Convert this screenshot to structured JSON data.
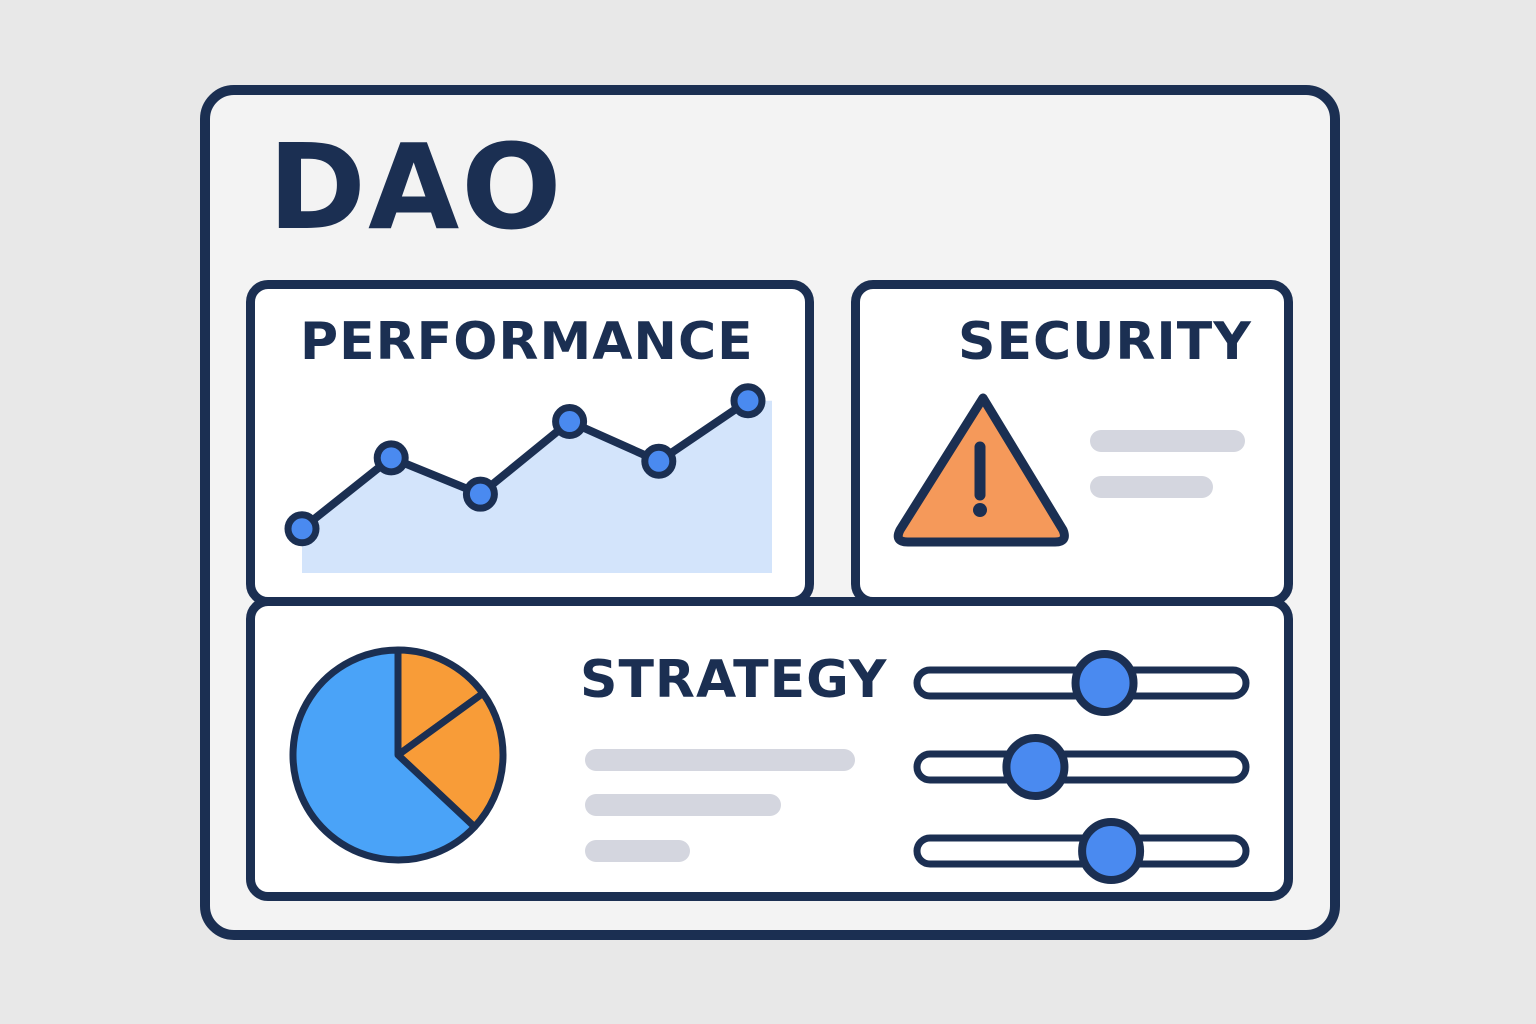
{
  "title": "DAO",
  "colors": {
    "outline": "#1b2f52",
    "accent_blue": "#4a8af0",
    "area_fill": "#d3e4fb",
    "warning_orange": "#f5995a",
    "pie_blue": "#4aa3f8",
    "pie_orange": "#f89c38",
    "placeholder_gray": "#d4d6df"
  },
  "performance": {
    "title": "PERFORMANCE",
    "chart_data": {
      "type": "area",
      "values": [
        0.14,
        0.55,
        0.34,
        0.76,
        0.53,
        0.88
      ],
      "markers": true
    }
  },
  "security": {
    "title": "SECURITY",
    "icon": "warning-triangle-icon",
    "placeholder_lines": 2
  },
  "strategy": {
    "title": "STRATEGY",
    "pie": {
      "type": "pie",
      "slices": [
        {
          "value": 0.15,
          "color": "#f89c38"
        },
        {
          "value": 0.22,
          "color": "#f89c38"
        },
        {
          "value": 0.63,
          "color": "#4aa3f8"
        }
      ]
    },
    "placeholder_lines": 3,
    "sliders": [
      {
        "value": 0.57
      },
      {
        "value": 0.36
      },
      {
        "value": 0.59
      }
    ]
  }
}
